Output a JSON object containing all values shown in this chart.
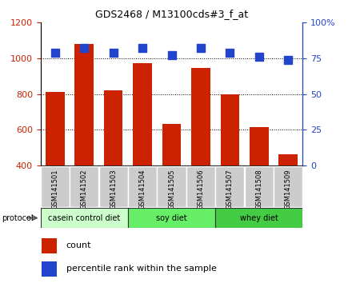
{
  "title": "GDS2468 / M13100cds#3_f_at",
  "samples": [
    "GSM141501",
    "GSM141502",
    "GSM141503",
    "GSM141504",
    "GSM141505",
    "GSM141506",
    "GSM141507",
    "GSM141508",
    "GSM141509"
  ],
  "counts": [
    810,
    1080,
    820,
    975,
    635,
    945,
    800,
    615,
    465
  ],
  "percentile_ranks": [
    79,
    82,
    79,
    82,
    77,
    82,
    79,
    76,
    74
  ],
  "groups": [
    {
      "label": "casein control diet",
      "start": 0,
      "end": 3,
      "color": "#ccffcc"
    },
    {
      "label": "soy diet",
      "start": 3,
      "end": 6,
      "color": "#66ee66"
    },
    {
      "label": "whey diet",
      "start": 6,
      "end": 9,
      "color": "#44cc44"
    }
  ],
  "bar_color": "#cc2200",
  "dot_color": "#2244cc",
  "ylim_left": [
    400,
    1200
  ],
  "ylim_right": [
    0,
    100
  ],
  "yticks_left": [
    400,
    600,
    800,
    1000,
    1200
  ],
  "yticks_right": [
    0,
    25,
    50,
    75,
    100
  ],
  "grid_values": [
    600,
    800,
    1000
  ],
  "ylabel_left_color": "#cc2200",
  "ylabel_right_color": "#2244cc",
  "background_plot": "#ffffff",
  "bar_width": 0.65,
  "dot_size": 50
}
